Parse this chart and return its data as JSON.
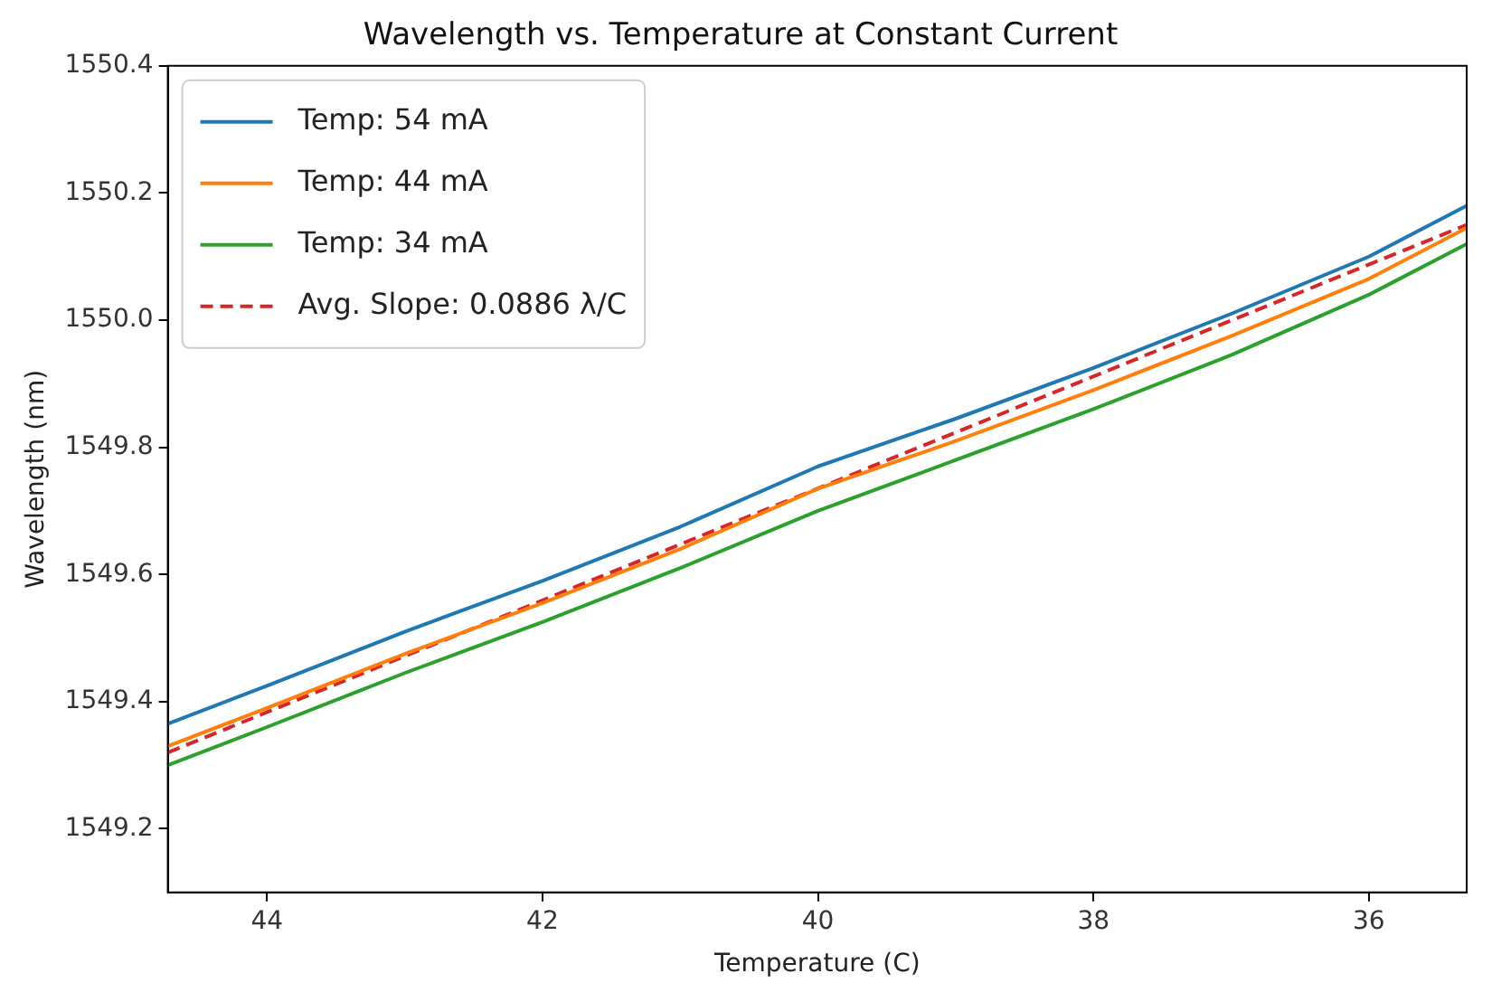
{
  "chart_data": {
    "type": "line",
    "title": "Wavelength vs. Temperature at Constant Current",
    "xlabel": "Temperature (C)",
    "ylabel": "Wavelength (nm)",
    "xlim": [
      44.72,
      35.29
    ],
    "xticks": [
      44,
      42,
      40,
      38,
      36
    ],
    "ylim": [
      1549.1,
      1550.4
    ],
    "yticks": [
      1549.2,
      1549.4,
      1549.6,
      1549.8,
      {
        "value": 1550,
        "label": "1550.0"
      },
      1550.2,
      1550.4
    ],
    "grid": false,
    "legend": "top left",
    "line_style": "solid",
    "marker": "none",
    "x": [
      44.72,
      44,
      43,
      42,
      41,
      40,
      39,
      38,
      37,
      36,
      35.29
    ],
    "series": [
      {
        "name": "Temp: 54 mA",
        "color": "#1f77b4",
        "values": [
          1549.365,
          1549.425,
          1549.51,
          1549.59,
          1549.675,
          1549.77,
          1549.845,
          1549.925,
          1550.01,
          1550.1,
          1550.18
        ]
      },
      {
        "name": "Temp: 44 mA",
        "color": "#ff7f0e",
        "values": [
          1549.33,
          1549.39,
          1549.475,
          1549.555,
          1549.64,
          1549.735,
          1549.81,
          1549.89,
          1549.975,
          1550.065,
          1550.145
        ]
      },
      {
        "name": "Temp: 34 mA",
        "color": "#2ca02c",
        "values": [
          1549.3,
          1549.36,
          1549.445,
          1549.525,
          1549.61,
          1549.7,
          1549.78,
          1549.86,
          1549.945,
          1550.04,
          1550.12
        ]
      },
      {
        "name": "Avg. Slope: 0.0886 λ/C",
        "color": "#d62728",
        "line_style": "dashed",
        "x": [
          44.72,
          35.29
        ],
        "values": [
          1549.32,
          1550.15
        ]
      }
    ]
  }
}
